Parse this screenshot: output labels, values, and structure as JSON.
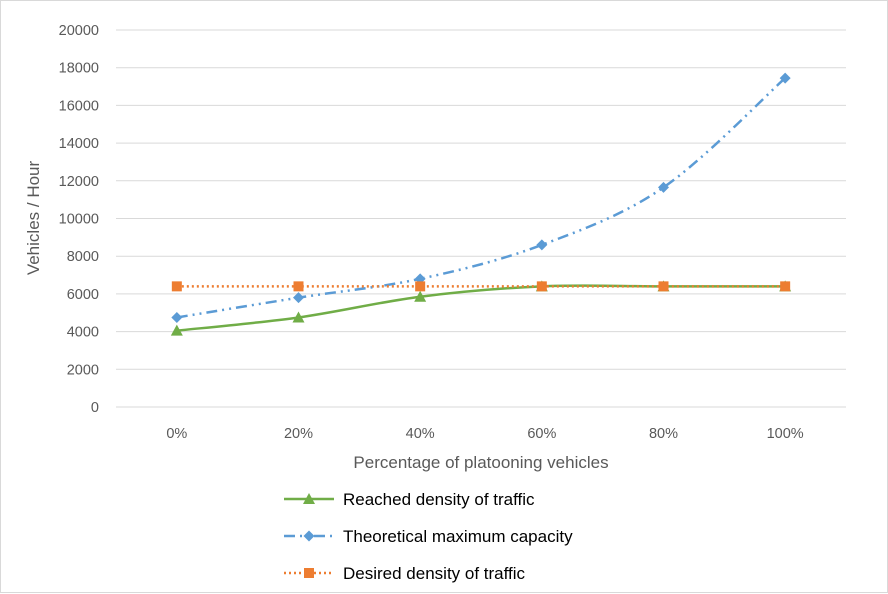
{
  "chart_data": {
    "type": "line",
    "title": "",
    "xlabel": "Percentage of platooning vehicles",
    "ylabel": "Vehicles / Hour",
    "categories": [
      "0%",
      "20%",
      "40%",
      "60%",
      "80%",
      "100%"
    ],
    "ylim": [
      0,
      20000
    ],
    "yticks": [
      0,
      2000,
      4000,
      6000,
      8000,
      10000,
      12000,
      14000,
      16000,
      18000,
      20000
    ],
    "grid": true,
    "legend_position": "bottom",
    "series": [
      {
        "name": "Reached density of traffic",
        "values": [
          4050,
          4750,
          5850,
          6400,
          6400,
          6400
        ],
        "color": "#70ad47",
        "marker": "triangle",
        "line_style": "solid",
        "smooth": true
      },
      {
        "name": "Theoretical maximum capacity",
        "values": [
          4750,
          5800,
          6800,
          8600,
          11650,
          17450
        ],
        "color": "#5b9bd5",
        "marker": "diamond",
        "line_style": "dash-dot-dot",
        "smooth": true
      },
      {
        "name": "Desired density of traffic",
        "values": [
          6400,
          6400,
          6400,
          6400,
          6400,
          6400
        ],
        "color": "#ed7d31",
        "marker": "square",
        "line_style": "dotted",
        "smooth": false
      }
    ]
  }
}
